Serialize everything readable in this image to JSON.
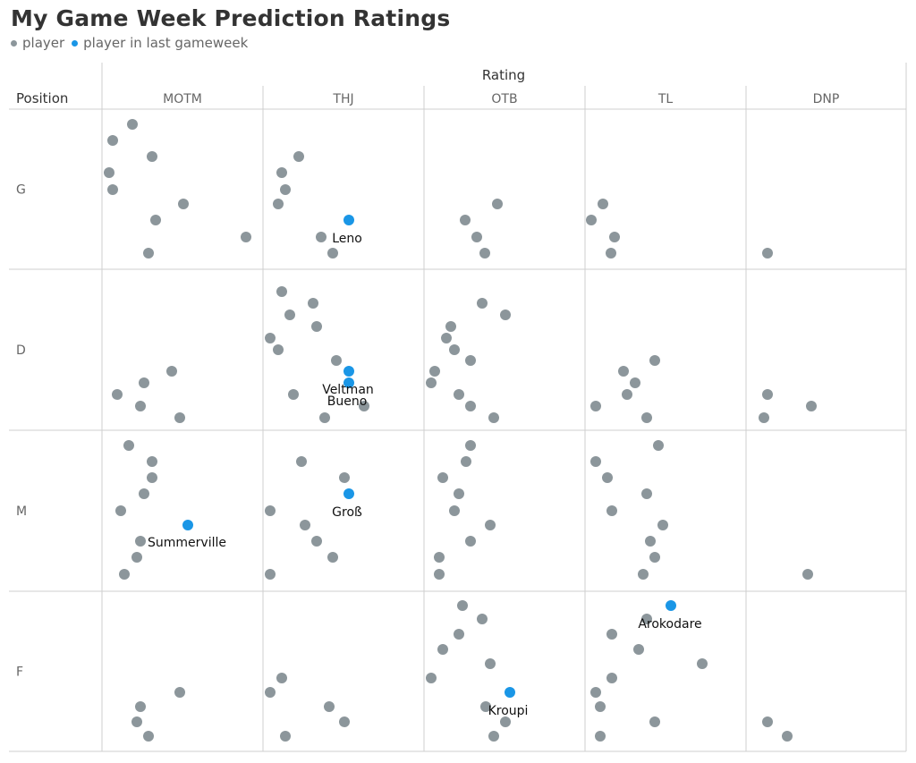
{
  "header": {
    "title": "My Game Week Prediction Ratings",
    "legend": [
      {
        "label": "player",
        "color": "#8c969b"
      },
      {
        "label": "player in last gameweek",
        "color": "#1a96e6"
      }
    ]
  },
  "chart_data": {
    "type": "scatter",
    "subtype": "faceted jitter strip",
    "column_header": "Rating",
    "row_header": "Position",
    "columns": [
      "MOTM",
      "THJ",
      "OTB",
      "TL",
      "DNP"
    ],
    "rows": [
      "G",
      "D",
      "M",
      "F"
    ],
    "grid": true,
    "colors": {
      "player": "#8c969b",
      "last_gameweek": "#1a96e6"
    },
    "series": [
      {
        "name": "player",
        "points": [
          {
            "position": "G",
            "rating": "MOTM"
          },
          {
            "position": "G",
            "rating": "MOTM"
          },
          {
            "position": "G",
            "rating": "MOTM"
          },
          {
            "position": "G",
            "rating": "MOTM"
          },
          {
            "position": "G",
            "rating": "MOTM"
          },
          {
            "position": "G",
            "rating": "MOTM"
          },
          {
            "position": "G",
            "rating": "MOTM"
          },
          {
            "position": "G",
            "rating": "MOTM"
          },
          {
            "position": "G",
            "rating": "MOTM"
          },
          {
            "position": "G",
            "rating": "THJ"
          },
          {
            "position": "G",
            "rating": "THJ"
          },
          {
            "position": "G",
            "rating": "THJ"
          },
          {
            "position": "G",
            "rating": "THJ"
          },
          {
            "position": "G",
            "rating": "THJ"
          },
          {
            "position": "G",
            "rating": "THJ"
          },
          {
            "position": "G",
            "rating": "OTB"
          },
          {
            "position": "G",
            "rating": "OTB"
          },
          {
            "position": "G",
            "rating": "OTB"
          },
          {
            "position": "G",
            "rating": "OTB"
          },
          {
            "position": "G",
            "rating": "TL"
          },
          {
            "position": "G",
            "rating": "TL"
          },
          {
            "position": "G",
            "rating": "TL"
          },
          {
            "position": "G",
            "rating": "TL"
          },
          {
            "position": "G",
            "rating": "DNP"
          },
          {
            "position": "D",
            "rating": "MOTM"
          },
          {
            "position": "D",
            "rating": "MOTM"
          },
          {
            "position": "D",
            "rating": "MOTM"
          },
          {
            "position": "D",
            "rating": "MOTM"
          },
          {
            "position": "D",
            "rating": "MOTM"
          },
          {
            "position": "D",
            "rating": "THJ"
          },
          {
            "position": "D",
            "rating": "THJ"
          },
          {
            "position": "D",
            "rating": "THJ"
          },
          {
            "position": "D",
            "rating": "THJ"
          },
          {
            "position": "D",
            "rating": "THJ"
          },
          {
            "position": "D",
            "rating": "THJ"
          },
          {
            "position": "D",
            "rating": "THJ"
          },
          {
            "position": "D",
            "rating": "THJ"
          },
          {
            "position": "D",
            "rating": "THJ"
          },
          {
            "position": "D",
            "rating": "THJ"
          },
          {
            "position": "D",
            "rating": "OTB"
          },
          {
            "position": "D",
            "rating": "OTB"
          },
          {
            "position": "D",
            "rating": "OTB"
          },
          {
            "position": "D",
            "rating": "OTB"
          },
          {
            "position": "D",
            "rating": "OTB"
          },
          {
            "position": "D",
            "rating": "OTB"
          },
          {
            "position": "D",
            "rating": "OTB"
          },
          {
            "position": "D",
            "rating": "OTB"
          },
          {
            "position": "D",
            "rating": "OTB"
          },
          {
            "position": "D",
            "rating": "OTB"
          },
          {
            "position": "D",
            "rating": "OTB"
          },
          {
            "position": "D",
            "rating": "TL"
          },
          {
            "position": "D",
            "rating": "TL"
          },
          {
            "position": "D",
            "rating": "TL"
          },
          {
            "position": "D",
            "rating": "TL"
          },
          {
            "position": "D",
            "rating": "TL"
          },
          {
            "position": "D",
            "rating": "TL"
          },
          {
            "position": "D",
            "rating": "DNP"
          },
          {
            "position": "D",
            "rating": "DNP"
          },
          {
            "position": "D",
            "rating": "DNP"
          },
          {
            "position": "M",
            "rating": "MOTM"
          },
          {
            "position": "M",
            "rating": "MOTM"
          },
          {
            "position": "M",
            "rating": "MOTM"
          },
          {
            "position": "M",
            "rating": "MOTM"
          },
          {
            "position": "M",
            "rating": "MOTM"
          },
          {
            "position": "M",
            "rating": "MOTM"
          },
          {
            "position": "M",
            "rating": "MOTM"
          },
          {
            "position": "M",
            "rating": "MOTM"
          },
          {
            "position": "M",
            "rating": "THJ"
          },
          {
            "position": "M",
            "rating": "THJ"
          },
          {
            "position": "M",
            "rating": "THJ"
          },
          {
            "position": "M",
            "rating": "THJ"
          },
          {
            "position": "M",
            "rating": "THJ"
          },
          {
            "position": "M",
            "rating": "THJ"
          },
          {
            "position": "M",
            "rating": "THJ"
          },
          {
            "position": "M",
            "rating": "OTB"
          },
          {
            "position": "M",
            "rating": "OTB"
          },
          {
            "position": "M",
            "rating": "OTB"
          },
          {
            "position": "M",
            "rating": "OTB"
          },
          {
            "position": "M",
            "rating": "OTB"
          },
          {
            "position": "M",
            "rating": "OTB"
          },
          {
            "position": "M",
            "rating": "OTB"
          },
          {
            "position": "M",
            "rating": "OTB"
          },
          {
            "position": "M",
            "rating": "OTB"
          },
          {
            "position": "M",
            "rating": "TL"
          },
          {
            "position": "M",
            "rating": "TL"
          },
          {
            "position": "M",
            "rating": "TL"
          },
          {
            "position": "M",
            "rating": "TL"
          },
          {
            "position": "M",
            "rating": "TL"
          },
          {
            "position": "M",
            "rating": "TL"
          },
          {
            "position": "M",
            "rating": "TL"
          },
          {
            "position": "M",
            "rating": "TL"
          },
          {
            "position": "M",
            "rating": "TL"
          },
          {
            "position": "M",
            "rating": "DNP"
          },
          {
            "position": "F",
            "rating": "MOTM"
          },
          {
            "position": "F",
            "rating": "MOTM"
          },
          {
            "position": "F",
            "rating": "MOTM"
          },
          {
            "position": "F",
            "rating": "MOTM"
          },
          {
            "position": "F",
            "rating": "THJ"
          },
          {
            "position": "F",
            "rating": "THJ"
          },
          {
            "position": "F",
            "rating": "THJ"
          },
          {
            "position": "F",
            "rating": "THJ"
          },
          {
            "position": "F",
            "rating": "THJ"
          },
          {
            "position": "F",
            "rating": "OTB"
          },
          {
            "position": "F",
            "rating": "OTB"
          },
          {
            "position": "F",
            "rating": "OTB"
          },
          {
            "position": "F",
            "rating": "OTB"
          },
          {
            "position": "F",
            "rating": "OTB"
          },
          {
            "position": "F",
            "rating": "OTB"
          },
          {
            "position": "F",
            "rating": "OTB"
          },
          {
            "position": "F",
            "rating": "OTB"
          },
          {
            "position": "F",
            "rating": "OTB"
          },
          {
            "position": "F",
            "rating": "TL"
          },
          {
            "position": "F",
            "rating": "TL"
          },
          {
            "position": "F",
            "rating": "TL"
          },
          {
            "position": "F",
            "rating": "TL"
          },
          {
            "position": "F",
            "rating": "TL"
          },
          {
            "position": "F",
            "rating": "TL"
          },
          {
            "position": "F",
            "rating": "TL"
          },
          {
            "position": "F",
            "rating": "TL"
          },
          {
            "position": "F",
            "rating": "TL"
          },
          {
            "position": "F",
            "rating": "DNP"
          },
          {
            "position": "F",
            "rating": "DNP"
          }
        ]
      },
      {
        "name": "player in last gameweek",
        "points": [
          {
            "position": "G",
            "rating": "THJ",
            "label": "Leno"
          },
          {
            "position": "D",
            "rating": "THJ",
            "label": "Veltman"
          },
          {
            "position": "D",
            "rating": "THJ",
            "label": "Bueno"
          },
          {
            "position": "M",
            "rating": "THJ",
            "label": "Groß"
          },
          {
            "position": "M",
            "rating": "MOTM",
            "label": "Summerville"
          },
          {
            "position": "F",
            "rating": "OTB",
            "label": "Kroupi"
          },
          {
            "position": "F",
            "rating": "TL",
            "label": "Arokodare"
          }
        ]
      }
    ]
  }
}
